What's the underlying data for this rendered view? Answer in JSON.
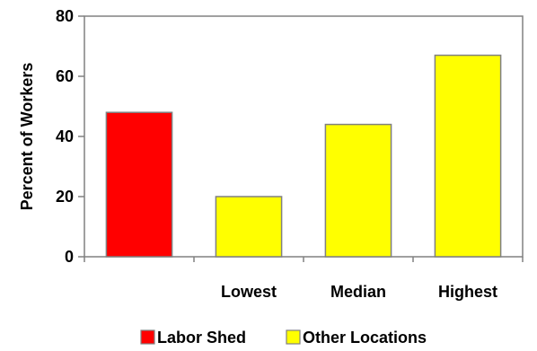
{
  "chart_data": {
    "type": "bar",
    "title": "",
    "xlabel": "",
    "ylabel": "Percent of Workers",
    "ylim": [
      0,
      80
    ],
    "yticks": [
      0,
      20,
      40,
      60,
      80
    ],
    "grid": false,
    "legend_position": "bottom",
    "bars": [
      {
        "label": "",
        "value": 48,
        "series": "Labor Shed"
      },
      {
        "label": "Lowest",
        "value": 20,
        "series": "Other Locations"
      },
      {
        "label": "Median",
        "value": 44,
        "series": "Other Locations"
      },
      {
        "label": "Highest",
        "value": 67,
        "series": "Other Locations"
      }
    ],
    "series": [
      {
        "name": "Labor Shed",
        "color": "#ff0000"
      },
      {
        "name": "Other Locations",
        "color": "#ffff00"
      }
    ]
  }
}
